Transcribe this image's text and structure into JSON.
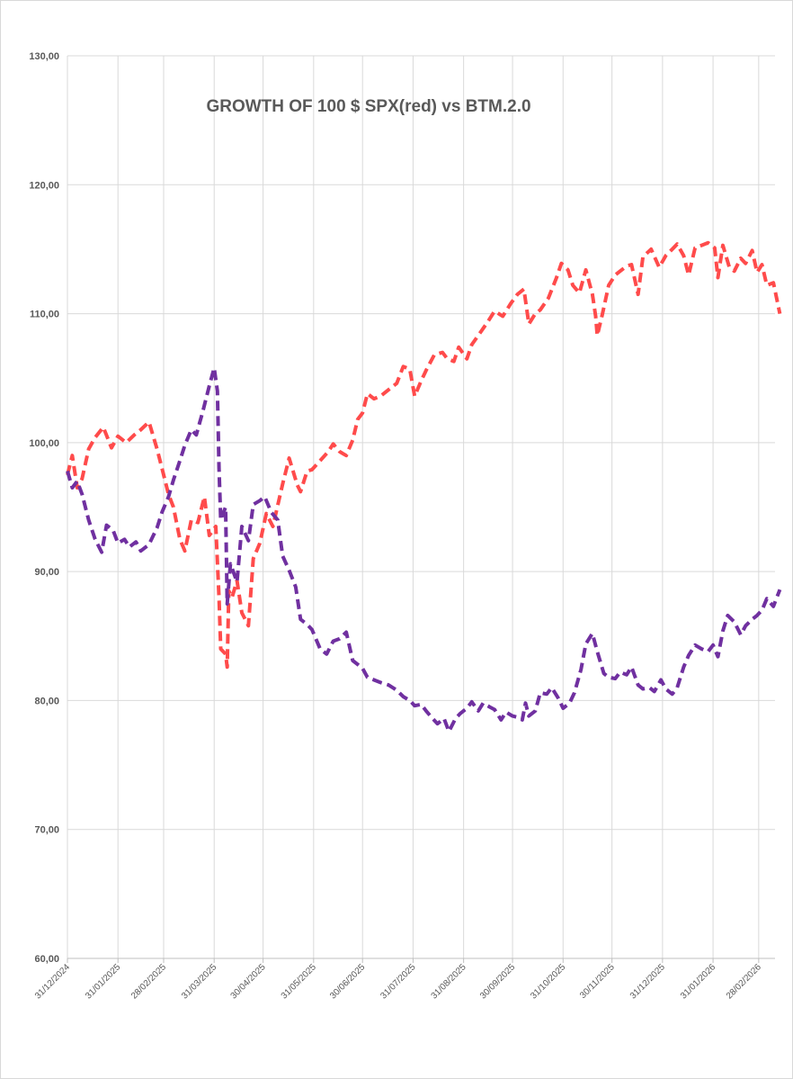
{
  "chart_data": {
    "type": "line",
    "title": "GROWTH OF 100 $ SPX(red) vs BTM.2.0",
    "xlabel": "",
    "ylabel": "",
    "ylim": [
      60,
      130
    ],
    "y_ticks": [
      "60,00",
      "70,00",
      "80,00",
      "90,00",
      "100,00",
      "110,00",
      "120,00",
      "130,00"
    ],
    "x_ticks": [
      "31/12/2024",
      "31/01/2025",
      "28/02/2025",
      "31/03/2025",
      "30/04/2025",
      "31/05/2025",
      "30/06/2025",
      "31/07/2025",
      "31/08/2025",
      "30/09/2025",
      "31/10/2025",
      "30/11/2025",
      "31/12/2025",
      "31/01/2026",
      "28/02/2026"
    ],
    "grid": true,
    "legend": "none",
    "series": [
      {
        "color": "#ff4b4b",
        "style": "dashed",
        "points": [
          [
            "2024-12-31",
            97.5
          ],
          [
            "2025-01-03",
            99.0
          ],
          [
            "2025-01-06",
            96.5
          ],
          [
            "2025-01-09",
            97.2
          ],
          [
            "2025-01-13",
            99.5
          ],
          [
            "2025-01-17",
            100.4
          ],
          [
            "2025-01-22",
            101.2
          ],
          [
            "2025-01-27",
            99.6
          ],
          [
            "2025-01-31",
            100.5
          ],
          [
            "2025-02-05",
            100.0
          ],
          [
            "2025-02-10",
            100.6
          ],
          [
            "2025-02-14",
            101.0
          ],
          [
            "2025-02-19",
            101.6
          ],
          [
            "2025-02-24",
            99.5
          ],
          [
            "2025-02-27",
            98.0
          ],
          [
            "2025-03-03",
            96.0
          ],
          [
            "2025-03-06",
            95.0
          ],
          [
            "2025-03-10",
            92.5
          ],
          [
            "2025-03-13",
            91.6
          ],
          [
            "2025-03-17",
            94.0
          ],
          [
            "2025-03-21",
            93.8
          ],
          [
            "2025-03-25",
            95.8
          ],
          [
            "2025-03-28",
            92.8
          ],
          [
            "2025-04-01",
            93.5
          ],
          [
            "2025-04-03",
            88.0
          ],
          [
            "2025-04-04",
            84.0
          ],
          [
            "2025-04-07",
            83.6
          ],
          [
            "2025-04-08",
            82.6
          ],
          [
            "2025-04-09",
            88.5
          ],
          [
            "2025-04-11",
            88.0
          ],
          [
            "2025-04-14",
            89.3
          ],
          [
            "2025-04-17",
            86.8
          ],
          [
            "2025-04-21",
            85.8
          ],
          [
            "2025-04-24",
            91.0
          ],
          [
            "2025-04-28",
            92.2
          ],
          [
            "2025-05-02",
            94.5
          ],
          [
            "2025-05-06",
            93.5
          ],
          [
            "2025-05-12",
            96.8
          ],
          [
            "2025-05-16",
            98.8
          ],
          [
            "2025-05-21",
            96.7
          ],
          [
            "2025-05-23",
            96.2
          ],
          [
            "2025-05-27",
            97.8
          ],
          [
            "2025-05-30",
            97.9
          ],
          [
            "2025-06-04",
            98.6
          ],
          [
            "2025-06-09",
            99.3
          ],
          [
            "2025-06-12",
            99.9
          ],
          [
            "2025-06-16",
            99.3
          ],
          [
            "2025-06-20",
            99.0
          ],
          [
            "2025-06-24",
            100.2
          ],
          [
            "2025-06-27",
            101.8
          ],
          [
            "2025-06-30",
            102.3
          ],
          [
            "2025-07-03",
            103.8
          ],
          [
            "2025-07-07",
            103.4
          ],
          [
            "2025-07-11",
            103.6
          ],
          [
            "2025-07-16",
            104.1
          ],
          [
            "2025-07-21",
            104.6
          ],
          [
            "2025-07-25",
            105.9
          ],
          [
            "2025-07-29",
            105.7
          ],
          [
            "2025-08-01",
            103.6
          ],
          [
            "2025-08-05",
            104.8
          ],
          [
            "2025-08-08",
            105.6
          ],
          [
            "2025-08-13",
            106.8
          ],
          [
            "2025-08-18",
            107.0
          ],
          [
            "2025-08-21",
            106.5
          ],
          [
            "2025-08-25",
            106.3
          ],
          [
            "2025-08-28",
            107.4
          ],
          [
            "2025-09-02",
            106.5
          ],
          [
            "2025-09-05",
            107.6
          ],
          [
            "2025-09-10",
            108.5
          ],
          [
            "2025-09-15",
            109.4
          ],
          [
            "2025-09-19",
            110.2
          ],
          [
            "2025-09-24",
            109.8
          ],
          [
            "2025-09-29",
            110.8
          ],
          [
            "2025-10-03",
            111.5
          ],
          [
            "2025-10-07",
            111.9
          ],
          [
            "2025-10-10",
            109.2
          ],
          [
            "2025-10-14",
            110.0
          ],
          [
            "2025-10-17",
            110.3
          ],
          [
            "2025-10-22",
            111.2
          ],
          [
            "2025-10-27",
            112.8
          ],
          [
            "2025-10-30",
            113.9
          ],
          [
            "2025-11-03",
            113.4
          ],
          [
            "2025-11-06",
            112.2
          ],
          [
            "2025-11-10",
            111.6
          ],
          [
            "2025-11-14",
            113.4
          ],
          [
            "2025-11-18",
            111.5
          ],
          [
            "2025-11-20",
            109.8
          ],
          [
            "2025-11-21",
            108.3
          ],
          [
            "2025-11-24",
            109.9
          ],
          [
            "2025-11-28",
            112.2
          ],
          [
            "2025-12-02",
            113.0
          ],
          [
            "2025-12-05",
            113.3
          ],
          [
            "2025-12-09",
            113.7
          ],
          [
            "2025-12-12",
            113.8
          ],
          [
            "2025-12-16",
            111.5
          ],
          [
            "2025-12-19",
            114.4
          ],
          [
            "2025-12-24",
            115.0
          ],
          [
            "2025-12-29",
            113.6
          ],
          [
            "2026-01-02",
            114.5
          ],
          [
            "2026-01-06",
            115.0
          ],
          [
            "2026-01-09",
            115.4
          ],
          [
            "2026-01-13",
            114.5
          ],
          [
            "2026-01-16",
            113.0
          ],
          [
            "2026-01-20",
            115.1
          ],
          [
            "2026-01-24",
            115.3
          ],
          [
            "2026-01-28",
            115.5
          ],
          [
            "2026-02-01",
            115.1
          ],
          [
            "2026-02-03",
            112.8
          ],
          [
            "2026-02-06",
            115.3
          ],
          [
            "2026-02-10",
            113.6
          ],
          [
            "2026-02-13",
            113.3
          ],
          [
            "2026-02-17",
            114.3
          ],
          [
            "2026-02-20",
            113.9
          ],
          [
            "2026-02-24",
            114.9
          ],
          [
            "2026-02-27",
            113.2
          ],
          [
            "2026-03-02",
            113.8
          ],
          [
            "2026-03-05",
            112.2
          ],
          [
            "2026-03-09",
            112.4
          ],
          [
            "2026-03-13",
            110.0
          ]
        ]
      },
      {
        "color": "#7030a0",
        "style": "dashed",
        "points": [
          [
            "2024-12-31",
            97.8
          ],
          [
            "2025-01-03",
            96.5
          ],
          [
            "2025-01-06",
            97.0
          ],
          [
            "2025-01-09",
            96.0
          ],
          [
            "2025-01-13",
            94.0
          ],
          [
            "2025-01-17",
            92.5
          ],
          [
            "2025-01-21",
            91.5
          ],
          [
            "2025-01-24",
            93.6
          ],
          [
            "2025-01-28",
            93.2
          ],
          [
            "2025-01-31",
            92.2
          ],
          [
            "2025-02-04",
            92.5
          ],
          [
            "2025-02-07",
            91.9
          ],
          [
            "2025-02-11",
            92.3
          ],
          [
            "2025-02-14",
            91.6
          ],
          [
            "2025-02-19",
            92.1
          ],
          [
            "2025-02-24",
            93.4
          ],
          [
            "2025-02-27",
            94.6
          ],
          [
            "2025-03-03",
            95.8
          ],
          [
            "2025-03-06",
            97.1
          ],
          [
            "2025-03-10",
            98.6
          ],
          [
            "2025-03-13",
            99.8
          ],
          [
            "2025-03-17",
            101.0
          ],
          [
            "2025-03-20",
            100.6
          ],
          [
            "2025-03-24",
            102.4
          ],
          [
            "2025-03-28",
            104.4
          ],
          [
            "2025-03-31",
            105.8
          ],
          [
            "2025-04-02",
            104.0
          ],
          [
            "2025-04-03",
            98.0
          ],
          [
            "2025-04-04",
            94.0
          ],
          [
            "2025-04-07",
            95.0
          ],
          [
            "2025-04-08",
            87.5
          ],
          [
            "2025-04-10",
            90.6
          ],
          [
            "2025-04-14",
            89.2
          ],
          [
            "2025-04-17",
            93.5
          ],
          [
            "2025-04-21",
            92.4
          ],
          [
            "2025-04-24",
            95.2
          ],
          [
            "2025-04-28",
            95.5
          ],
          [
            "2025-05-01",
            95.8
          ],
          [
            "2025-05-05",
            94.6
          ],
          [
            "2025-05-09",
            94.0
          ],
          [
            "2025-05-12",
            91.2
          ],
          [
            "2025-05-16",
            90.1
          ],
          [
            "2025-05-20",
            88.8
          ],
          [
            "2025-05-23",
            86.3
          ],
          [
            "2025-05-27",
            85.9
          ],
          [
            "2025-05-30",
            85.5
          ],
          [
            "2025-06-04",
            84.0
          ],
          [
            "2025-06-08",
            83.6
          ],
          [
            "2025-06-12",
            84.6
          ],
          [
            "2025-06-16",
            84.8
          ],
          [
            "2025-06-20",
            85.3
          ],
          [
            "2025-06-24",
            83.1
          ],
          [
            "2025-06-30",
            82.5
          ],
          [
            "2025-07-03",
            81.8
          ],
          [
            "2025-07-07",
            81.6
          ],
          [
            "2025-07-11",
            81.4
          ],
          [
            "2025-07-16",
            81.2
          ],
          [
            "2025-07-21",
            80.8
          ],
          [
            "2025-07-25",
            80.3
          ],
          [
            "2025-07-29",
            80.0
          ],
          [
            "2025-08-01",
            79.6
          ],
          [
            "2025-08-05",
            79.7
          ],
          [
            "2025-08-08",
            79.2
          ],
          [
            "2025-08-12",
            78.6
          ],
          [
            "2025-08-15",
            78.2
          ],
          [
            "2025-08-19",
            78.6
          ],
          [
            "2025-08-22",
            77.6
          ],
          [
            "2025-08-26",
            78.6
          ],
          [
            "2025-08-29",
            79.0
          ],
          [
            "2025-09-02",
            79.4
          ],
          [
            "2025-09-05",
            79.9
          ],
          [
            "2025-09-09",
            79.2
          ],
          [
            "2025-09-12",
            79.8
          ],
          [
            "2025-09-16",
            79.5
          ],
          [
            "2025-09-19",
            79.3
          ],
          [
            "2025-09-23",
            78.5
          ],
          [
            "2025-09-26",
            79.1
          ],
          [
            "2025-09-30",
            78.8
          ],
          [
            "2025-10-03",
            78.7
          ],
          [
            "2025-10-06",
            78.5
          ],
          [
            "2025-10-08",
            79.8
          ],
          [
            "2025-10-10",
            78.8
          ],
          [
            "2025-10-14",
            79.2
          ],
          [
            "2025-10-17",
            80.6
          ],
          [
            "2025-10-21",
            80.5
          ],
          [
            "2025-10-24",
            81.0
          ],
          [
            "2025-10-28",
            80.2
          ],
          [
            "2025-10-31",
            79.4
          ],
          [
            "2025-11-04",
            79.8
          ],
          [
            "2025-11-07",
            80.6
          ],
          [
            "2025-11-11",
            82.4
          ],
          [
            "2025-11-14",
            84.4
          ],
          [
            "2025-11-18",
            85.2
          ],
          [
            "2025-11-21",
            83.8
          ],
          [
            "2025-11-25",
            82.1
          ],
          [
            "2025-11-28",
            81.8
          ],
          [
            "2025-12-02",
            81.7
          ],
          [
            "2025-12-05",
            82.2
          ],
          [
            "2025-12-09",
            82.0
          ],
          [
            "2025-12-12",
            82.6
          ],
          [
            "2025-12-16",
            81.2
          ],
          [
            "2025-12-19",
            80.9
          ],
          [
            "2025-12-23",
            81.0
          ],
          [
            "2025-12-26",
            80.7
          ],
          [
            "2025-12-30",
            81.6
          ],
          [
            "2026-01-02",
            80.9
          ],
          [
            "2026-01-06",
            80.5
          ],
          [
            "2026-01-09",
            81.0
          ],
          [
            "2026-01-13",
            82.6
          ],
          [
            "2026-01-16",
            83.5
          ],
          [
            "2026-01-20",
            84.3
          ],
          [
            "2026-01-24",
            84.0
          ],
          [
            "2026-01-28",
            83.8
          ],
          [
            "2026-01-31",
            84.3
          ],
          [
            "2026-02-03",
            83.4
          ],
          [
            "2026-02-06",
            85.4
          ],
          [
            "2026-02-09",
            86.6
          ],
          [
            "2026-02-13",
            86.1
          ],
          [
            "2026-02-17",
            85.1
          ],
          [
            "2026-02-20",
            85.8
          ],
          [
            "2026-02-24",
            86.3
          ],
          [
            "2026-02-27",
            86.6
          ],
          [
            "2026-03-02",
            87.0
          ],
          [
            "2026-03-05",
            87.9
          ],
          [
            "2026-03-09",
            87.3
          ],
          [
            "2026-03-13",
            88.6
          ]
        ]
      }
    ]
  }
}
